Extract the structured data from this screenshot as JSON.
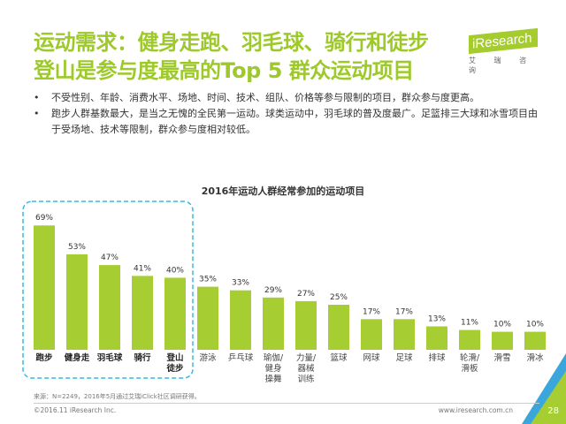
{
  "header": {
    "title_line1": "运动需求：健身走跑、羽毛球、骑行和徒步",
    "title_line2": "登山是参与度最高的Top 5 群众运动项目"
  },
  "logo": {
    "name": "iResearch",
    "subtitle": "艾 瑞 咨 询"
  },
  "bullets": [
    "不受性别、年龄、消费水平、场地、时间、技术、组队、价格等参与限制的项目，群众参与度更高。",
    "跑步人群基数最大，是当之无愧的全民第一运动。球类运动中，羽毛球的普及度最广。足篮排三大球和冰雪项目由于受场地、技术等限制，群众参与度相对较低。"
  ],
  "bullet_symbol": "•",
  "chart_data": {
    "type": "bar",
    "title": "2016年运动人群经常参加的运动项目",
    "categories": [
      "跑步",
      "健身走",
      "羽毛球",
      "骑行",
      "登山\n徒步",
      "游泳",
      "乒乓球",
      "瑜伽/\n健身\n操舞",
      "力量/\n器械\n训练",
      "篮球",
      "网球",
      "足球",
      "排球",
      "轮滑/\n滑板",
      "滑雪",
      "滑冰"
    ],
    "values": [
      69,
      53,
      47,
      41,
      40,
      35,
      33,
      29,
      27,
      25,
      17,
      17,
      13,
      11,
      10,
      10
    ],
    "labels": [
      "69%",
      "53%",
      "47%",
      "41%",
      "40%",
      "35%",
      "33%",
      "29%",
      "27%",
      "25%",
      "17%",
      "17%",
      "13%",
      "11%",
      "10%",
      "10%"
    ],
    "highlight": "Top 5",
    "ylim": [
      0,
      70
    ],
    "bar_color": "#a6cd32",
    "highlight_box_color": "#3bb8e0"
  },
  "footer": {
    "source": "来源：N=2249，2016年5月通过艾瑞iClick社区调研获得。",
    "copyright": "©2016.11 iResearch Inc.",
    "url": "www.iresearch.com.cn",
    "page": "28"
  }
}
